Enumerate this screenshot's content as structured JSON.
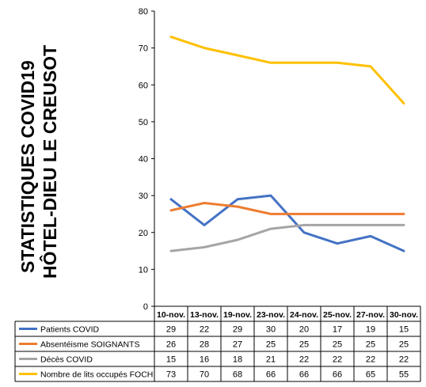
{
  "chart_data": {
    "type": "line",
    "title_lines": [
      "STATISTIQUES COVID19",
      "HÔTEL-DIEU LE CREUSOT"
    ],
    "categories": [
      "10-nov.",
      "13-nov.",
      "19-nov.",
      "23-nov.",
      "24-nov.",
      "25-nov.",
      "27-nov.",
      "30-nov."
    ],
    "ylim": [
      0,
      80
    ],
    "yticks": [
      0,
      10,
      20,
      30,
      40,
      50,
      60,
      70,
      80
    ],
    "grid": false,
    "legend": "data-table-below",
    "series": [
      {
        "name": "Patients COVID",
        "color": "#4472C4",
        "values": [
          29,
          22,
          29,
          30,
          20,
          17,
          19,
          15
        ]
      },
      {
        "name": "Absentéisme SOIGNANTS",
        "color": "#ED7D31",
        "values": [
          26,
          28,
          27,
          25,
          25,
          25,
          25,
          25
        ]
      },
      {
        "name": "Décès COVID",
        "color": "#A5A5A5",
        "values": [
          15,
          16,
          18,
          21,
          22,
          22,
          22,
          22
        ]
      },
      {
        "name": "Nombre de lits occupés FOCH",
        "color": "#FFC000",
        "values": [
          73,
          70,
          68,
          66,
          66,
          66,
          65,
          55
        ]
      }
    ]
  }
}
